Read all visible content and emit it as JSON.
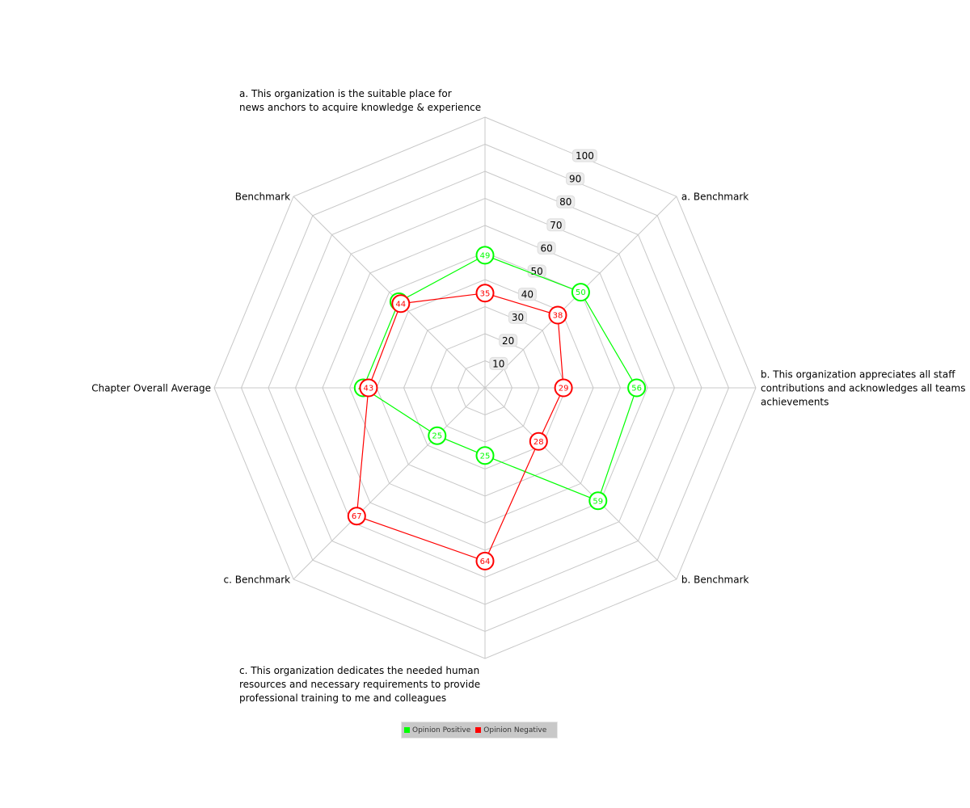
{
  "chart_data": {
    "type": "radar",
    "axes": [
      [
        "a. This organization is the suitable place for",
        "news anchors to acquire knowledge & experience"
      ],
      [
        "a. Benchmark"
      ],
      [
        "b. This organization appreciates all staff",
        "contributions and acknowledges all teams",
        "achievements"
      ],
      [
        "b. Benchmark"
      ],
      [
        "c. This organization dedicates the needed human",
        "resources and necessary requirements to provide",
        "professional training to me and colleagues"
      ],
      [
        "c. Benchmark"
      ],
      [
        "Chapter Overall Average"
      ],
      [
        "Benchmark"
      ]
    ],
    "rlim": [
      0,
      100
    ],
    "ticks": [
      "10",
      "20",
      "30",
      "40",
      "50",
      "60",
      "70",
      "80",
      "90",
      "100"
    ],
    "grid": true,
    "legend_position": "bottom",
    "series": [
      {
        "name": "Opinion Positive",
        "color": "#00ff00",
        "values": [
          49,
          50,
          56,
          59,
          25,
          25,
          45,
          45
        ]
      },
      {
        "name": "Opinion Negative",
        "color": "#ff0000",
        "values": [
          35,
          38,
          29,
          28,
          64,
          67,
          43,
          44
        ]
      }
    ]
  }
}
